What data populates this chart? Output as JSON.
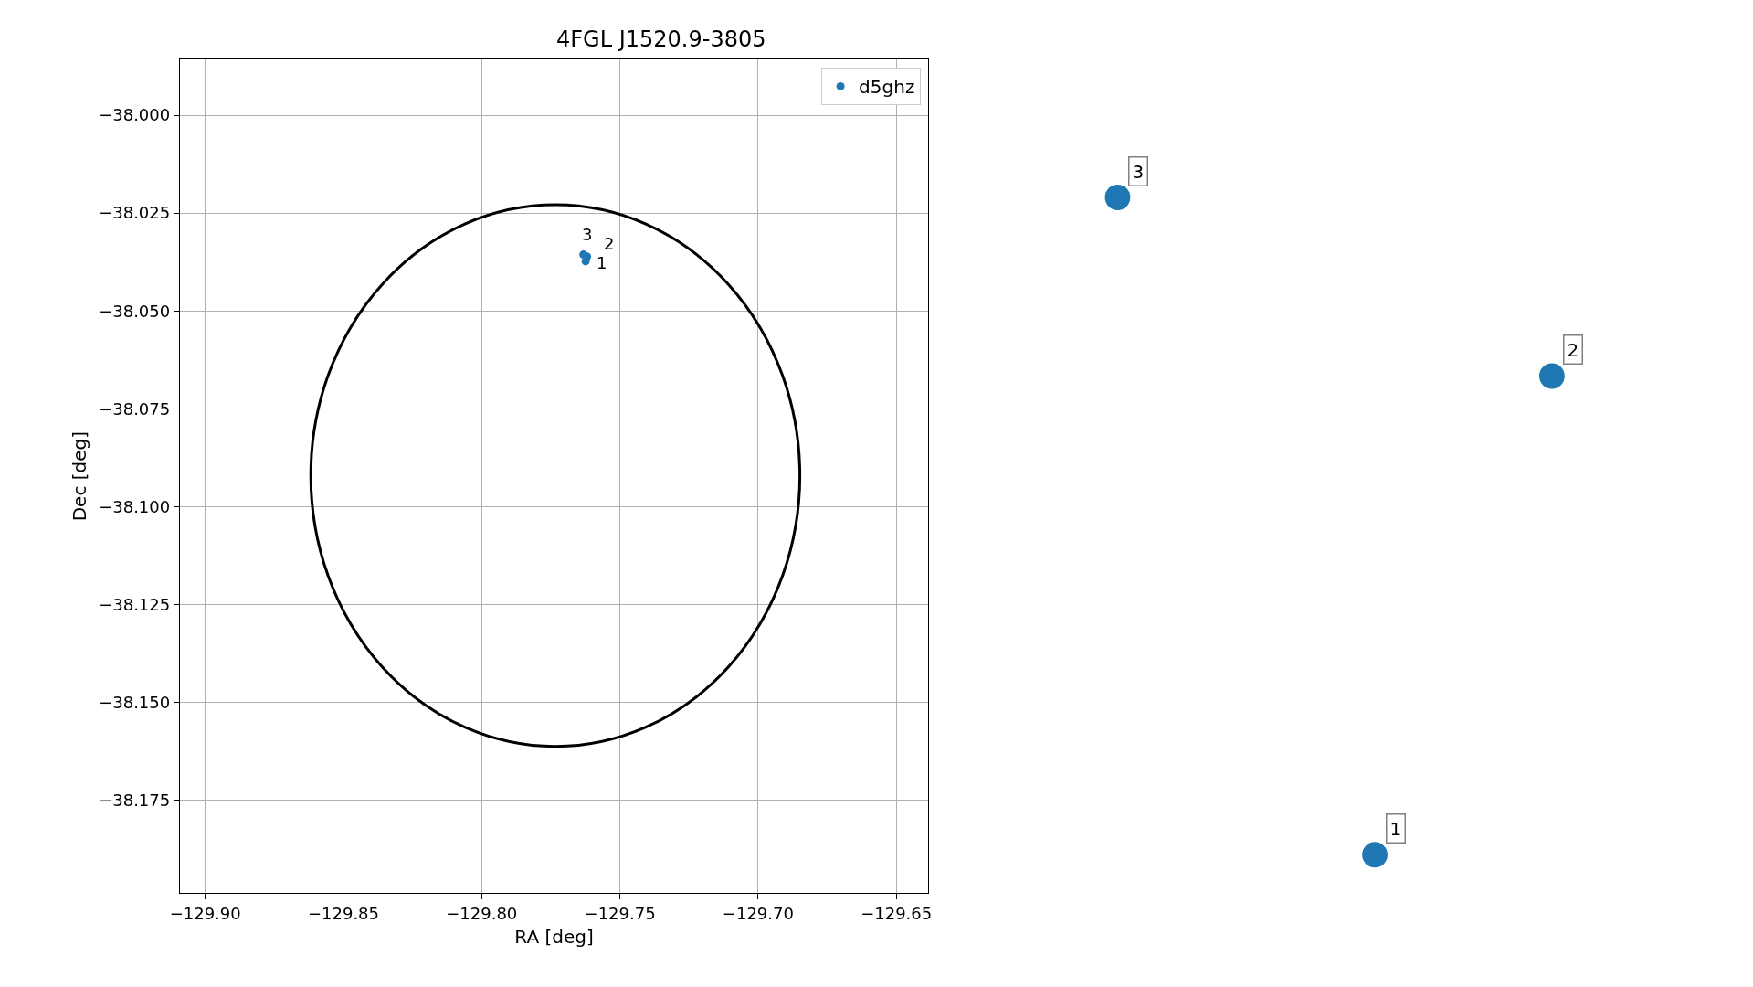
{
  "chart_data": [
    {
      "type": "scatter",
      "title": "4FGL J1520.9-3805",
      "xlabel": "RA [deg]",
      "ylabel": "Dec [deg]",
      "series": [
        {
          "type": "scatter",
          "name": "d5ghz",
          "color": "#1f77b4",
          "x": [
            -129.7624,
            -129.7619,
            -129.7632
          ],
          "values": [
            -38.0373,
            -38.0361,
            -38.0356
          ]
        }
      ],
      "annotations": [
        {
          "text": "1",
          "x": -129.7624,
          "y": -38.0373
        },
        {
          "text": "2",
          "x": -129.7619,
          "y": -38.0361
        },
        {
          "text": "3",
          "x": -129.7632,
          "y": -38.0356
        }
      ],
      "xlim": [
        -129.9092,
        -129.6384
      ],
      "ylim": [
        -38.1987,
        -37.9857
      ],
      "xticks": [
        {
          "value": -129.9,
          "label": "−129.90"
        },
        {
          "value": -129.85,
          "label": "−129.85"
        },
        {
          "value": -129.8,
          "label": "−129.80"
        },
        {
          "value": -129.75,
          "label": "−129.75"
        },
        {
          "value": -129.7,
          "label": "−129.70"
        },
        {
          "value": -129.65,
          "label": "−129.65"
        }
      ],
      "yticks": [
        {
          "value": -38.0,
          "label": "−38.000"
        },
        {
          "value": -38.025,
          "label": "−38.025"
        },
        {
          "value": -38.05,
          "label": "−38.050"
        },
        {
          "value": -38.075,
          "label": "−38.075"
        },
        {
          "value": -38.1,
          "label": "−38.100"
        },
        {
          "value": -38.125,
          "label": "−38.125"
        },
        {
          "value": -38.15,
          "label": "−38.150"
        },
        {
          "value": -38.175,
          "label": "−38.175"
        }
      ],
      "grid": true,
      "legend": "top right"
    },
    {
      "type": "other",
      "annotations": [
        "1",
        "2",
        "3"
      ]
    }
  ]
}
